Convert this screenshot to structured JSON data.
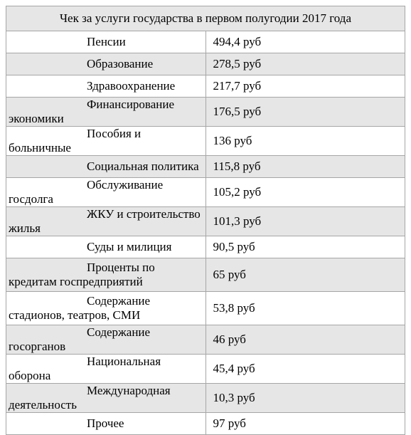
{
  "title": "Чек за услуги государства в первом полугодии 2017 года",
  "rows": [
    {
      "label": "Пенсии",
      "amount": "494,4 руб"
    },
    {
      "label": "Образование",
      "amount": "278,5 руб"
    },
    {
      "label": "Здравоохранение",
      "amount": "217,7 руб"
    },
    {
      "label": "Финансирование экономики",
      "amount": "176,5 руб"
    },
    {
      "label": "Пособия и больничные",
      "amount": "136 руб"
    },
    {
      "label": "Социальная политика",
      "amount": "115,8 руб"
    },
    {
      "label": "Обслуживание госдолга",
      "amount": "105,2 руб"
    },
    {
      "label": "ЖКУ и строительство жилья",
      "amount": "101,3 руб"
    },
    {
      "label": "Суды и милиция",
      "amount": "90,5 руб"
    },
    {
      "label": "Проценты по кредитам госпредприятий",
      "amount": "65 руб"
    },
    {
      "label": "Содержание стадионов, театров, СМИ",
      "amount": "53,8 руб"
    },
    {
      "label": "Содержание госорганов",
      "amount": "46 руб"
    },
    {
      "label": "Национальная оборона",
      "amount": "45,4 руб"
    },
    {
      "label": "Международная деятельность",
      "amount": "10,3 руб"
    },
    {
      "label": "Прочее",
      "amount": "97 руб"
    }
  ]
}
